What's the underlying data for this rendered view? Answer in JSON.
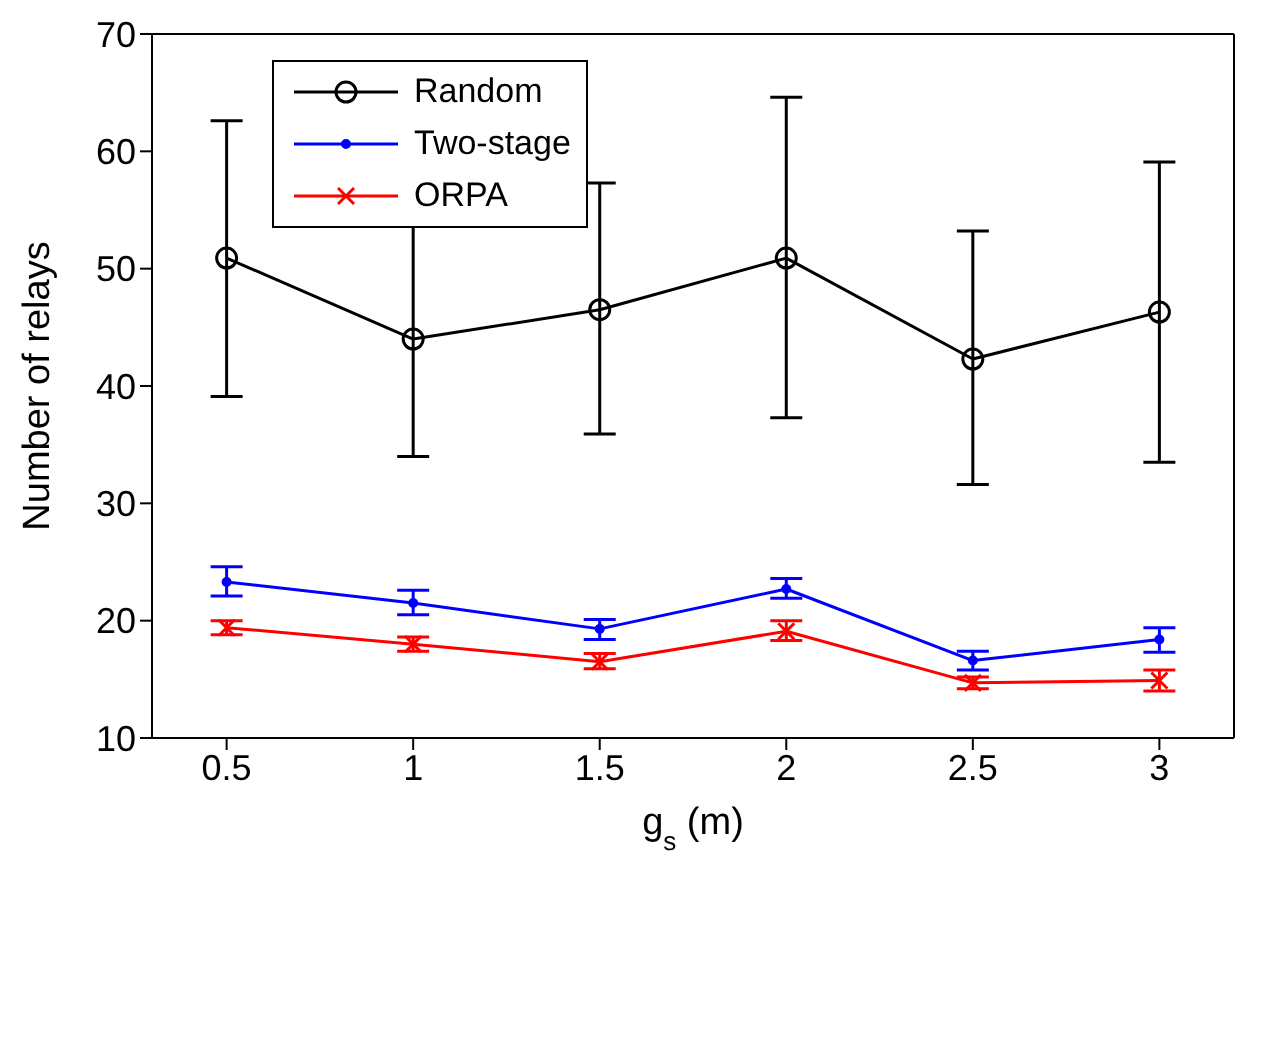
{
  "chart_data": {
    "type": "line",
    "xlabel": "g$_{s}$ (m)",
    "ylabel": "Number of relays",
    "x": [
      0.5,
      1,
      1.5,
      2,
      2.5,
      3
    ],
    "series": [
      {
        "name": "Random",
        "color": "#000000",
        "marker": "circle",
        "values": [
          50.9,
          44.0,
          46.5,
          50.9,
          42.3,
          46.3
        ],
        "errors": [
          [
            39.1,
            62.6
          ],
          [
            34.0,
            54.1
          ],
          [
            35.9,
            57.3
          ],
          [
            37.3,
            64.6
          ],
          [
            31.6,
            53.2
          ],
          [
            33.5,
            59.1
          ]
        ]
      },
      {
        "name": "Two-stage",
        "color": "#0000ff",
        "marker": "dot",
        "values": [
          23.3,
          21.5,
          19.3,
          22.7,
          16.6,
          18.4
        ],
        "errors": [
          [
            22.1,
            24.6
          ],
          [
            20.5,
            22.6
          ],
          [
            18.4,
            20.1
          ],
          [
            21.9,
            23.6
          ],
          [
            15.8,
            17.4
          ],
          [
            17.3,
            19.4
          ]
        ]
      },
      {
        "name": "ORPA",
        "color": "#ff0000",
        "marker": "cross",
        "values": [
          19.4,
          18.0,
          16.5,
          19.1,
          14.7,
          14.9
        ],
        "errors": [
          [
            18.8,
            20.0
          ],
          [
            17.4,
            18.6
          ],
          [
            15.9,
            17.2
          ],
          [
            18.3,
            20.0
          ],
          [
            14.2,
            15.2
          ],
          [
            14.0,
            15.8
          ]
        ]
      }
    ],
    "xlim": [
      0.3,
      3.2
    ],
    "xticks": [
      0.5,
      1,
      1.5,
      2,
      2.5,
      3
    ],
    "ylim": [
      10,
      70
    ],
    "yticks": [
      10,
      20,
      30,
      40,
      50,
      60,
      70
    ],
    "grid": false,
    "legend": "top left",
    "line_style": "solid"
  }
}
